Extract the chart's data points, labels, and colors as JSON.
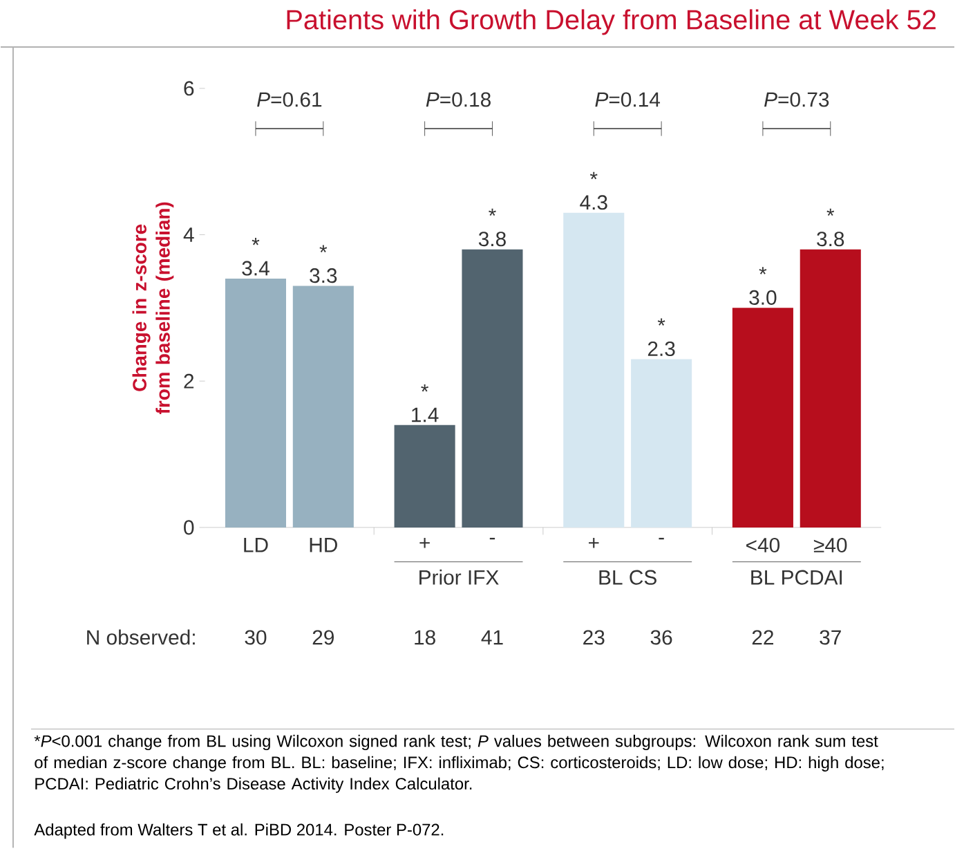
{
  "chart_data": {
    "type": "bar",
    "title": "Patients with Growth Delay from Baseline at Week 52",
    "ylabel": "Change in z-score from baseline (median)",
    "categories": [
      "LD",
      "HD",
      "+",
      "-",
      "+",
      "-",
      "<40",
      "≥40"
    ],
    "values": [
      3.4,
      3.3,
      1.4,
      3.8,
      4.3,
      2.3,
      3.0,
      3.8
    ],
    "colors": [
      "#97b1c0",
      "#97b1c0",
      "#52646f",
      "#52646f",
      "#d5e7f1",
      "#d5e7f1",
      "#b70e1d",
      "#b70e1d"
    ],
    "value_labels": [
      "* 3.4",
      "* 3.3",
      "* 1.4",
      "* 3.8",
      "* 4.3",
      "* 2.3",
      "* 3.0",
      "* 3.8"
    ],
    "ylim": [
      0,
      6
    ],
    "yticks": [
      0,
      2,
      4,
      6
    ],
    "annotations": [
      "*P*=0.61",
      "*P*=0.18",
      "*P*=0.14",
      "*P*=0.73",
      "Prior IFX",
      "BL CS",
      "BL PCDAI",
      "N observed:",
      "30",
      "29",
      "18",
      "41",
      "23",
      "36",
      "22",
      "37",
      "*",
      "*P*<0.001 change from BL using Wilcoxon signed rank test; *P* values between subgroups: Wilcoxon rank sum test of median z-score change from BL. BL: baseline; IFX: infliximab; CS: corticosteroids; LD: low dose; HD: high dose; PCDAI: Pediatric Crohn’s Disease Activity Index Calculator.",
      "Adapted from Walters T et al. PiBD 2014. Poster P-072."
    ]
  }
}
